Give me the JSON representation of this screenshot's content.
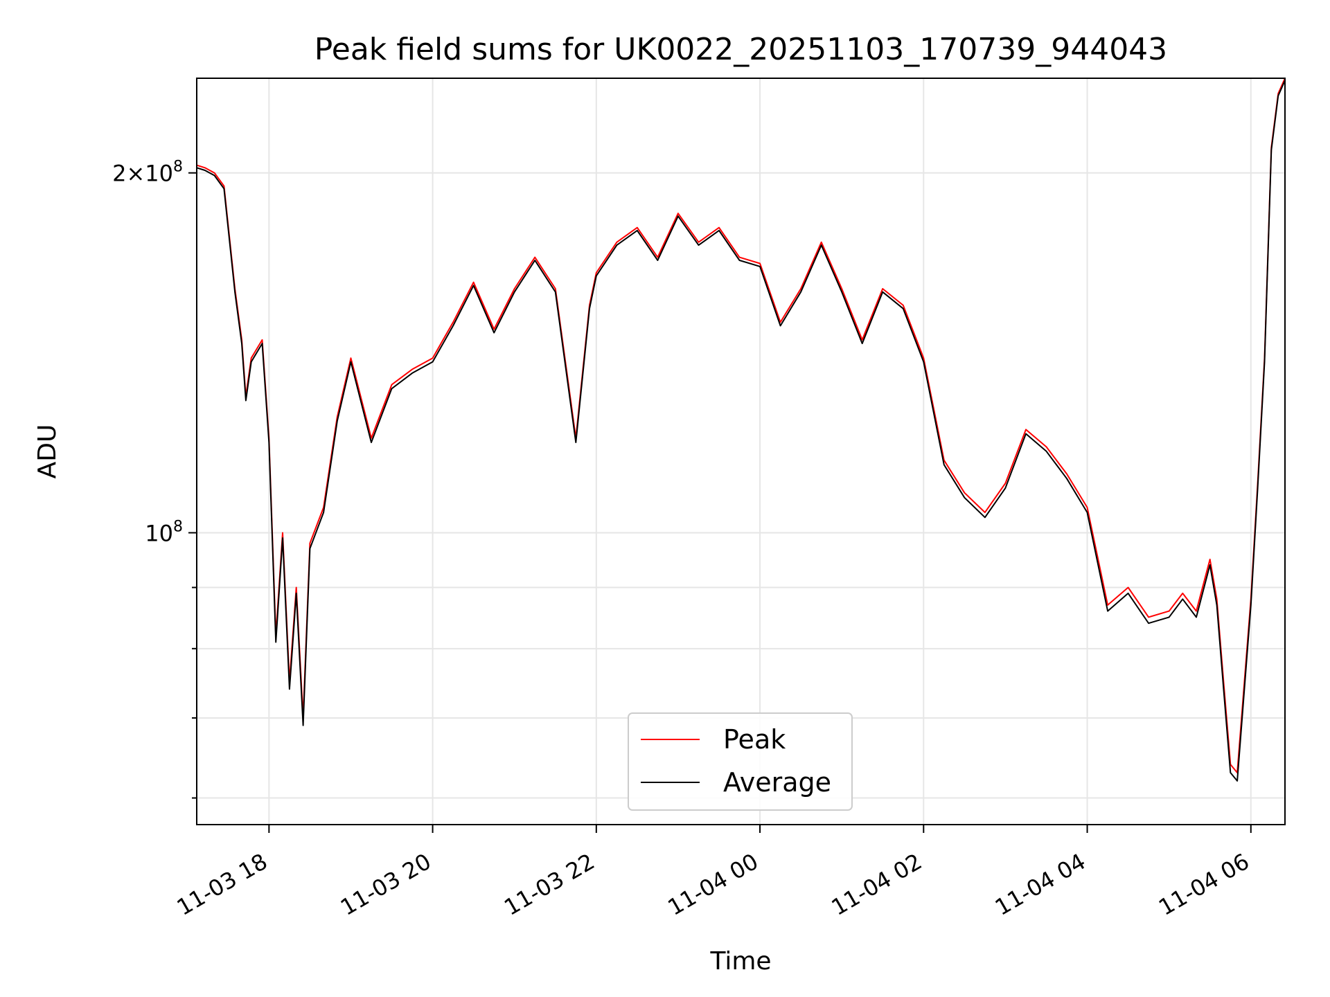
{
  "chart_data": {
    "type": "line",
    "title": "Peak field sums for UK0022_20251103_170739_944043",
    "xlabel": "Time",
    "ylabel": "ADU",
    "yscale": "log",
    "grid": true,
    "legend_placement": "lower center",
    "xlim": [
      "2025-11-03 17:07",
      "2025-11-04 06:25"
    ],
    "ylim": [
      57000000,
      240000000
    ],
    "x_ticks": [
      {
        "value": "2025-11-03 18:00",
        "label": "11-03 18"
      },
      {
        "value": "2025-11-03 20:00",
        "label": "11-03 20"
      },
      {
        "value": "2025-11-03 22:00",
        "label": "11-03 22"
      },
      {
        "value": "2025-11-04 00:00",
        "label": "11-04 00"
      },
      {
        "value": "2025-11-04 02:00",
        "label": "11-04 02"
      },
      {
        "value": "2025-11-04 04:00",
        "label": "11-04 04"
      },
      {
        "value": "2025-11-04 06:00",
        "label": "11-04 06"
      }
    ],
    "y_major_ticks": [
      {
        "value": 100000000,
        "base": "10",
        "exp": "8",
        "label": "10^8"
      },
      {
        "value": 200000000,
        "mant": "2",
        "base": "10",
        "exp": "8",
        "label": "2×10^8"
      }
    ],
    "y_minor_ticks": [
      60000000,
      70000000,
      80000000,
      90000000
    ],
    "x": [
      "2025-11-03 17:07",
      "2025-11-03 17:13",
      "2025-11-03 17:20",
      "2025-11-03 17:27",
      "2025-11-03 17:35",
      "2025-11-03 17:40",
      "2025-11-03 17:43",
      "2025-11-03 17:47",
      "2025-11-03 17:55",
      "2025-11-03 18:00",
      "2025-11-03 18:05",
      "2025-11-03 18:10",
      "2025-11-03 18:15",
      "2025-11-03 18:20",
      "2025-11-03 18:25",
      "2025-11-03 18:30",
      "2025-11-03 18:40",
      "2025-11-03 18:50",
      "2025-11-03 19:00",
      "2025-11-03 19:15",
      "2025-11-03 19:30",
      "2025-11-03 19:45",
      "2025-11-03 20:00",
      "2025-11-03 20:15",
      "2025-11-03 20:30",
      "2025-11-03 20:45",
      "2025-11-03 21:00",
      "2025-11-03 21:15",
      "2025-11-03 21:30",
      "2025-11-03 21:45",
      "2025-11-03 21:55",
      "2025-11-03 22:00",
      "2025-11-03 22:15",
      "2025-11-03 22:30",
      "2025-11-03 22:45",
      "2025-11-03 23:00",
      "2025-11-03 23:15",
      "2025-11-03 23:30",
      "2025-11-03 23:45",
      "2025-11-04 00:00",
      "2025-11-04 00:15",
      "2025-11-04 00:30",
      "2025-11-04 00:45",
      "2025-11-04 01:00",
      "2025-11-04 01:15",
      "2025-11-04 01:30",
      "2025-11-04 01:45",
      "2025-11-04 02:00",
      "2025-11-04 02:15",
      "2025-11-04 02:30",
      "2025-11-04 02:45",
      "2025-11-04 03:00",
      "2025-11-04 03:15",
      "2025-11-04 03:30",
      "2025-11-04 03:45",
      "2025-11-04 04:00",
      "2025-11-04 04:15",
      "2025-11-04 04:30",
      "2025-11-04 04:45",
      "2025-11-04 05:00",
      "2025-11-04 05:10",
      "2025-11-04 05:20",
      "2025-11-04 05:30",
      "2025-11-04 05:35",
      "2025-11-04 05:40",
      "2025-11-04 05:45",
      "2025-11-04 05:50",
      "2025-11-04 06:00",
      "2025-11-04 06:05",
      "2025-11-04 06:10",
      "2025-11-04 06:15",
      "2025-11-04 06:20",
      "2025-11-04 06:25"
    ],
    "series": [
      {
        "name": "Peak",
        "color": "#ff0000",
        "values": [
          203000000,
          202000000,
          200000000,
          195000000,
          160000000,
          145000000,
          130000000,
          140000000,
          145000000,
          120000000,
          82000000,
          100000000,
          75000000,
          90000000,
          70000000,
          98000000,
          105000000,
          125000000,
          140000000,
          120000000,
          133000000,
          137000000,
          140000000,
          150000000,
          162000000,
          148000000,
          160000000,
          170000000,
          160000000,
          120000000,
          155000000,
          165000000,
          175000000,
          180000000,
          170000000,
          185000000,
          175000000,
          180000000,
          170000000,
          168000000,
          150000000,
          160000000,
          175000000,
          160000000,
          145000000,
          160000000,
          155000000,
          140000000,
          115000000,
          108000000,
          104000000,
          110000000,
          122000000,
          118000000,
          112000000,
          105000000,
          87000000,
          90000000,
          85000000,
          86000000,
          89000000,
          86000000,
          95000000,
          88000000,
          75000000,
          64000000,
          63000000,
          88000000,
          110000000,
          140000000,
          210000000,
          233000000,
          240000000
        ]
      },
      {
        "name": "Average",
        "color": "#000000",
        "values": [
          202000000,
          201000000,
          199000000,
          194000000,
          159000000,
          144000000,
          129000000,
          139000000,
          144000000,
          119000000,
          81000000,
          99000000,
          74000000,
          89000000,
          69000000,
          97000000,
          104000000,
          124000000,
          139000000,
          119000000,
          132000000,
          136000000,
          139000000,
          149000000,
          161000000,
          147000000,
          159000000,
          169000000,
          159000000,
          119000000,
          154000000,
          164000000,
          174000000,
          179000000,
          169000000,
          184000000,
          174000000,
          179000000,
          169000000,
          167000000,
          149000000,
          159000000,
          174000000,
          159000000,
          144000000,
          159000000,
          154000000,
          139000000,
          114000000,
          107000000,
          103000000,
          109000000,
          121000000,
          117000000,
          111000000,
          104000000,
          86000000,
          89000000,
          84000000,
          85000000,
          88000000,
          85000000,
          94000000,
          87000000,
          74000000,
          63000000,
          62000000,
          87000000,
          109000000,
          139000000,
          209000000,
          232000000,
          239000000
        ]
      }
    ]
  }
}
